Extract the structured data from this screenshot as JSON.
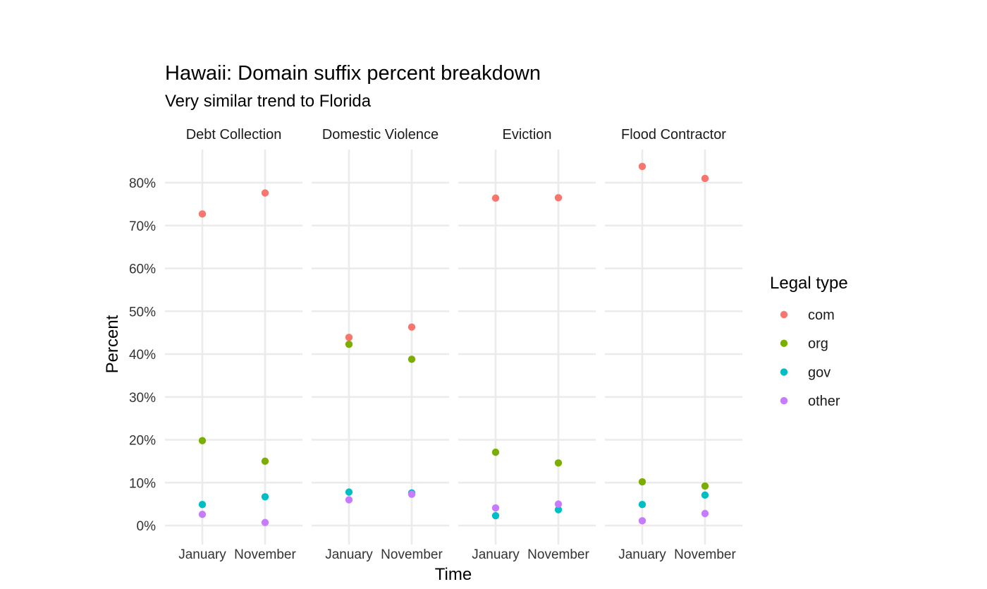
{
  "chart_data": {
    "type": "scatter",
    "title": "Hawaii: Domain suffix percent breakdown",
    "subtitle": "Very similar trend to Florida",
    "xlabel": "Time",
    "ylabel": "Percent",
    "ylim": [
      0,
      85
    ],
    "y_ticks": [
      "0%",
      "10%",
      "20%",
      "30%",
      "40%",
      "50%",
      "60%",
      "70%",
      "80%"
    ],
    "y_tick_values": [
      0,
      10,
      20,
      30,
      40,
      50,
      60,
      70,
      80
    ],
    "categories": [
      "January",
      "November"
    ],
    "grid": true,
    "legend_title": "Legal type",
    "legend_position": "right",
    "series": [
      {
        "name": "com",
        "color": "#F8766D"
      },
      {
        "name": "org",
        "color": "#7CAE00"
      },
      {
        "name": "gov",
        "color": "#00BFC4"
      },
      {
        "name": "other",
        "color": "#C77CFF"
      }
    ],
    "panels": [
      {
        "title": "Debt Collection",
        "values": {
          "com": [
            72.7,
            77.6
          ],
          "org": [
            19.8,
            15.0
          ],
          "gov": [
            4.9,
            6.7
          ],
          "other": [
            2.6,
            0.7
          ]
        }
      },
      {
        "title": "Domestic Violence",
        "values": {
          "com": [
            43.9,
            46.3
          ],
          "org": [
            42.3,
            38.8
          ],
          "gov": [
            7.8,
            7.6
          ],
          "other": [
            6.0,
            7.3
          ]
        }
      },
      {
        "title": "Eviction",
        "values": {
          "com": [
            76.4,
            76.5
          ],
          "org": [
            17.1,
            14.6
          ],
          "gov": [
            2.3,
            3.7
          ],
          "other": [
            4.1,
            5.0
          ]
        }
      },
      {
        "title": "Flood Contractor",
        "values": {
          "com": [
            83.8,
            81.0
          ],
          "org": [
            10.2,
            9.2
          ],
          "gov": [
            4.9,
            7.1
          ],
          "other": [
            1.1,
            2.8
          ]
        }
      }
    ]
  }
}
